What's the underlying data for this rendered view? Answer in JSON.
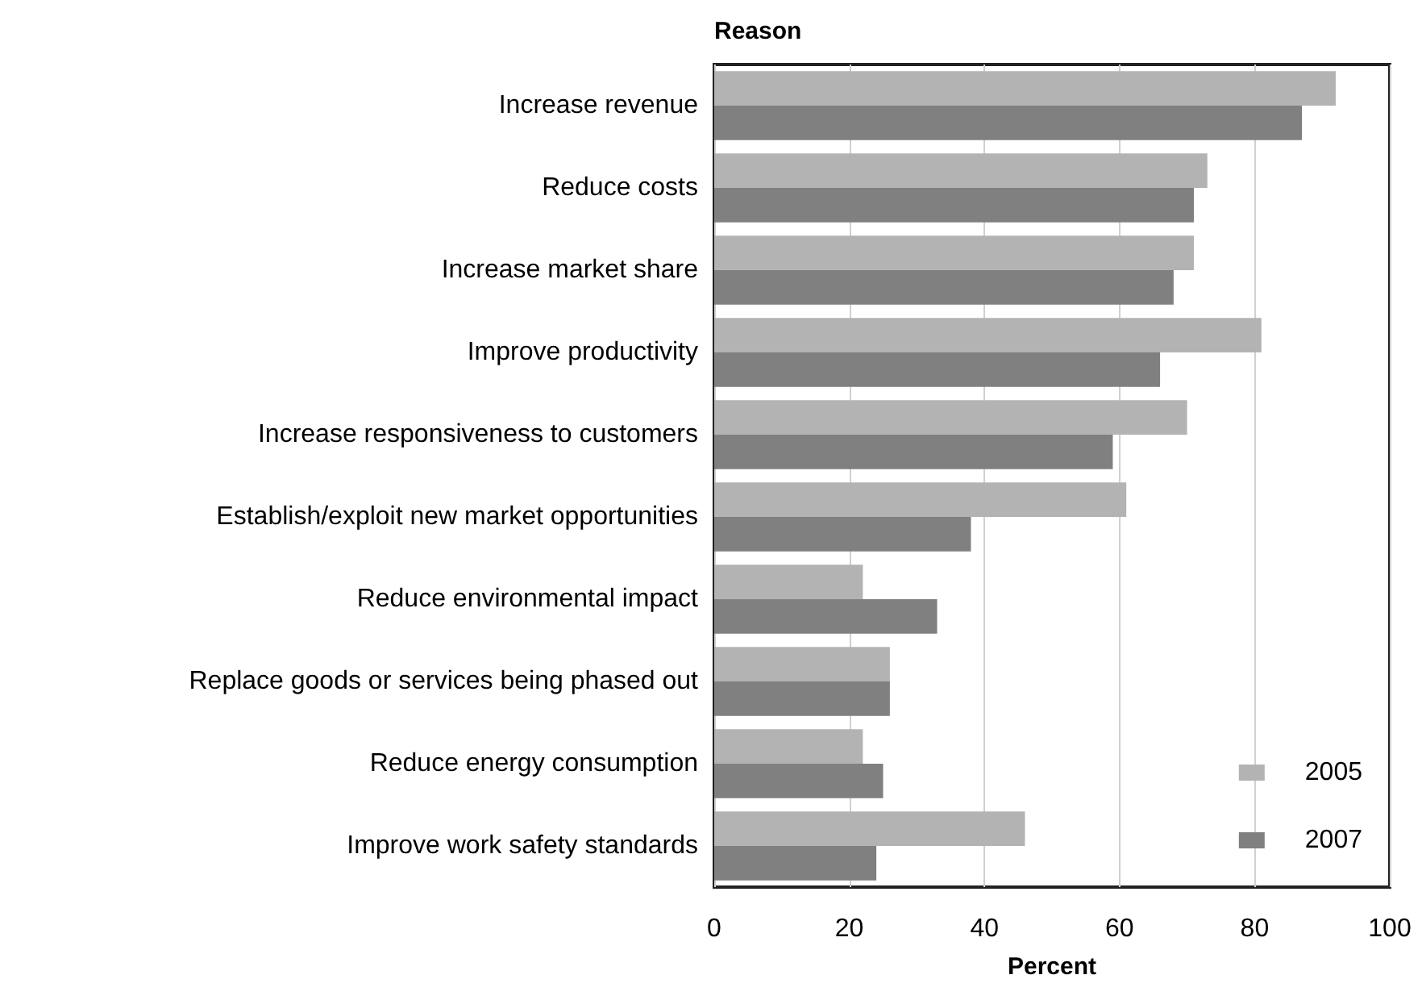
{
  "chart_data": {
    "type": "bar",
    "orientation": "horizontal",
    "ylabel": "Reason",
    "xlabel": "Percent",
    "categories": [
      "Increase revenue",
      "Reduce costs",
      "Increase market share",
      "Improve productivity",
      "Increase responsiveness to customers",
      "Establish/exploit new market opportunities",
      "Reduce environmental impact",
      "Replace goods or services being phased out",
      "Reduce energy consumption",
      "Improve work safety standards"
    ],
    "series": [
      {
        "name": "2005",
        "color": "#b3b3b3",
        "values": [
          92,
          73,
          71,
          81,
          70,
          61,
          22,
          26,
          22,
          46
        ]
      },
      {
        "name": "2007",
        "color": "#808080",
        "values": [
          87,
          71,
          68,
          66,
          59,
          38,
          33,
          26,
          25,
          24
        ]
      }
    ],
    "xlim": [
      0,
      100
    ],
    "xticks": [
      0,
      20,
      40,
      60,
      80,
      100
    ],
    "grid": "x",
    "legend": "bottom right"
  }
}
